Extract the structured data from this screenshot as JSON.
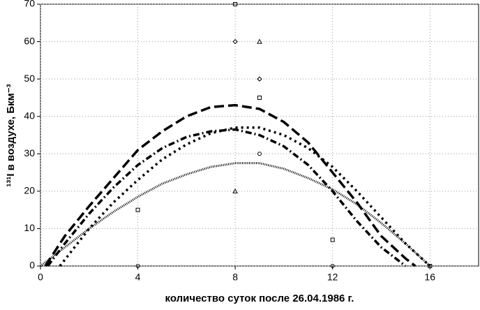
{
  "chart_data": {
    "type": "line",
    "x_label": "количество суток после 26.04.1986 г.",
    "y_label": "¹³¹I в воздухе, Бкм⁻³",
    "xlim": [
      0,
      18
    ],
    "xticks": [
      0,
      4,
      8,
      12,
      16
    ],
    "ylim": [
      0,
      70
    ],
    "yticks": [
      0,
      10,
      20,
      30,
      40,
      50,
      60,
      70
    ],
    "grid": true,
    "series": [
      {
        "color": "#000000",
        "dash": "14,6",
        "width": 3.5,
        "x": [
          0.2,
          1,
          2,
          3,
          4,
          5,
          6,
          7,
          8,
          9,
          10,
          11,
          12,
          13,
          14,
          15,
          15.4
        ],
        "values": [
          0,
          8,
          16,
          23.5,
          31,
          36,
          40,
          42.5,
          43,
          42,
          38.5,
          33,
          25,
          17,
          8,
          2,
          0
        ]
      },
      {
        "color": "#000000",
        "dash": "9,4,2,4",
        "width": 3.5,
        "x": [
          0.3,
          1,
          2,
          3,
          4,
          5,
          6,
          7,
          8,
          9,
          10,
          11,
          12,
          13,
          14,
          15
        ],
        "values": [
          0,
          6,
          14,
          21,
          27,
          31.5,
          34.5,
          36,
          36.5,
          35,
          32,
          27,
          20,
          12,
          5,
          0
        ]
      },
      {
        "color": "#000000",
        "dash": "3,5",
        "width": 3.5,
        "x": [
          0.8,
          2,
          3,
          4,
          5,
          6,
          7,
          8,
          9,
          10,
          11,
          12,
          13,
          14,
          15,
          16
        ],
        "values": [
          0,
          10,
          17,
          23,
          28.5,
          32.5,
          35.5,
          37,
          37,
          35,
          31.5,
          26.5,
          20,
          13,
          6,
          0
        ]
      },
      {
        "color": "#000000",
        "dash": "1,1.5",
        "width": 3,
        "x": [
          0,
          1,
          2,
          3,
          4,
          5,
          6,
          7,
          8,
          9,
          10,
          11,
          12,
          13,
          14,
          15,
          16
        ],
        "values": [
          0,
          5,
          10,
          14.5,
          18.5,
          22,
          24.5,
          26.5,
          27.5,
          27.5,
          26,
          23.5,
          20.5,
          16.5,
          11.5,
          6,
          0
        ]
      },
      {
        "color": "#000000",
        "marker": "square",
        "x": [
          4,
          9,
          12,
          16,
          8
        ],
        "values": [
          15,
          45,
          7,
          0,
          70
        ]
      },
      {
        "color": "#000000",
        "marker": "diamond",
        "x": [
          8,
          9
        ],
        "values": [
          60,
          50
        ]
      },
      {
        "color": "#000000",
        "marker": "triangle",
        "x": [
          9,
          8
        ],
        "values": [
          60,
          20
        ]
      },
      {
        "color": "#000000",
        "marker": "circle",
        "x": [
          9,
          4,
          12
        ],
        "values": [
          30,
          0,
          0
        ]
      }
    ]
  }
}
